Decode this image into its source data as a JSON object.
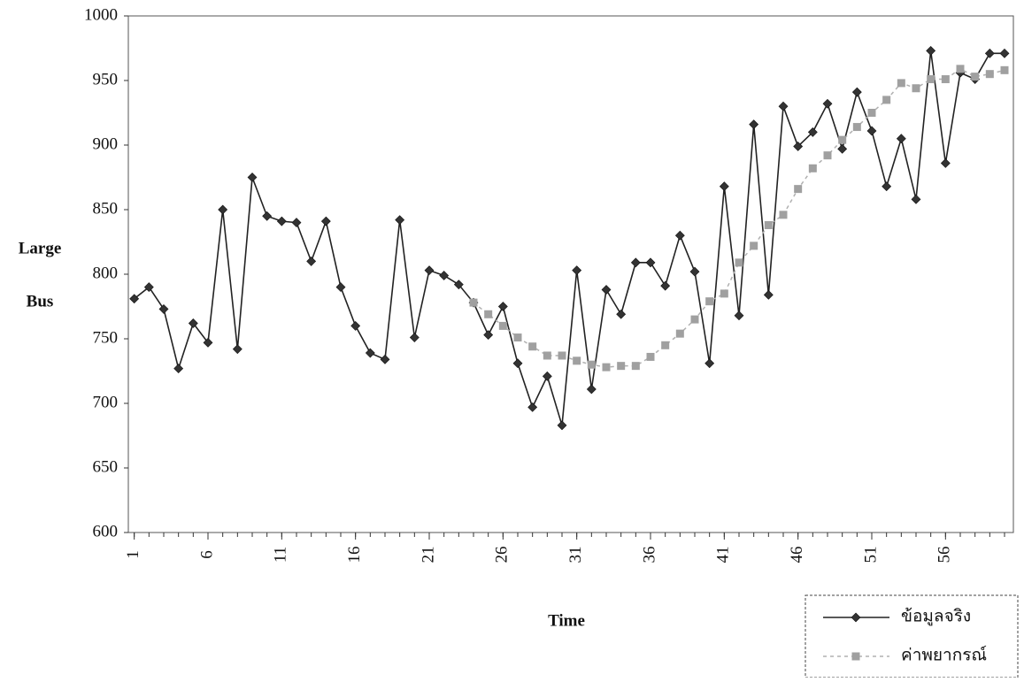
{
  "chart_data": {
    "type": "line",
    "ylabel": [
      "Large",
      "Bus"
    ],
    "xlabel": "Time",
    "x": [
      1,
      2,
      3,
      4,
      5,
      6,
      7,
      8,
      9,
      10,
      11,
      12,
      13,
      14,
      15,
      16,
      17,
      18,
      19,
      20,
      21,
      22,
      23,
      24,
      25,
      26,
      27,
      28,
      29,
      30,
      31,
      32,
      33,
      34,
      35,
      36,
      37,
      38,
      39,
      40,
      41,
      42,
      43,
      44,
      45,
      46,
      47,
      48,
      49,
      50,
      51,
      52,
      53,
      54,
      55,
      56,
      57,
      58,
      59,
      60
    ],
    "xlim": [
      0.6,
      60.6
    ],
    "xticks": [
      1,
      6,
      11,
      16,
      21,
      26,
      31,
      36,
      41,
      46,
      51,
      56
    ],
    "ylim": [
      600,
      1000
    ],
    "yticks": [
      600,
      650,
      700,
      750,
      800,
      850,
      900,
      950,
      1000
    ],
    "legend": "lower right",
    "series": [
      {
        "name": "ข้อมูลจริง",
        "color": "#333333",
        "marker": "diamond",
        "dash": false,
        "values": [
          781,
          790,
          773,
          727,
          762,
          747,
          850,
          742,
          875,
          845,
          841,
          840,
          810,
          841,
          790,
          760,
          739,
          734,
          842,
          751,
          803,
          799,
          792,
          778,
          753,
          775,
          731,
          697,
          721,
          683,
          803,
          711,
          788,
          769,
          809,
          809,
          791,
          830,
          802,
          731,
          868,
          768,
          916,
          784,
          930,
          899,
          910,
          932,
          897,
          941,
          911,
          868,
          905,
          858,
          973,
          886,
          956,
          951,
          971,
          971
        ]
      },
      {
        "name": "ค่าพยากรณ์",
        "color": "#a0a0a0",
        "marker": "square",
        "dash": true,
        "values": [
          null,
          null,
          null,
          null,
          null,
          null,
          null,
          null,
          null,
          null,
          null,
          null,
          null,
          null,
          null,
          null,
          null,
          null,
          null,
          null,
          null,
          null,
          null,
          778,
          769,
          760,
          751,
          744,
          737,
          737,
          733,
          730,
          728,
          729,
          729,
          736,
          745,
          754,
          765,
          779,
          785,
          809,
          822,
          838,
          846,
          866,
          882,
          892,
          904,
          914,
          925,
          935,
          948,
          944,
          951,
          951,
          959,
          953,
          955,
          958
        ]
      }
    ]
  }
}
